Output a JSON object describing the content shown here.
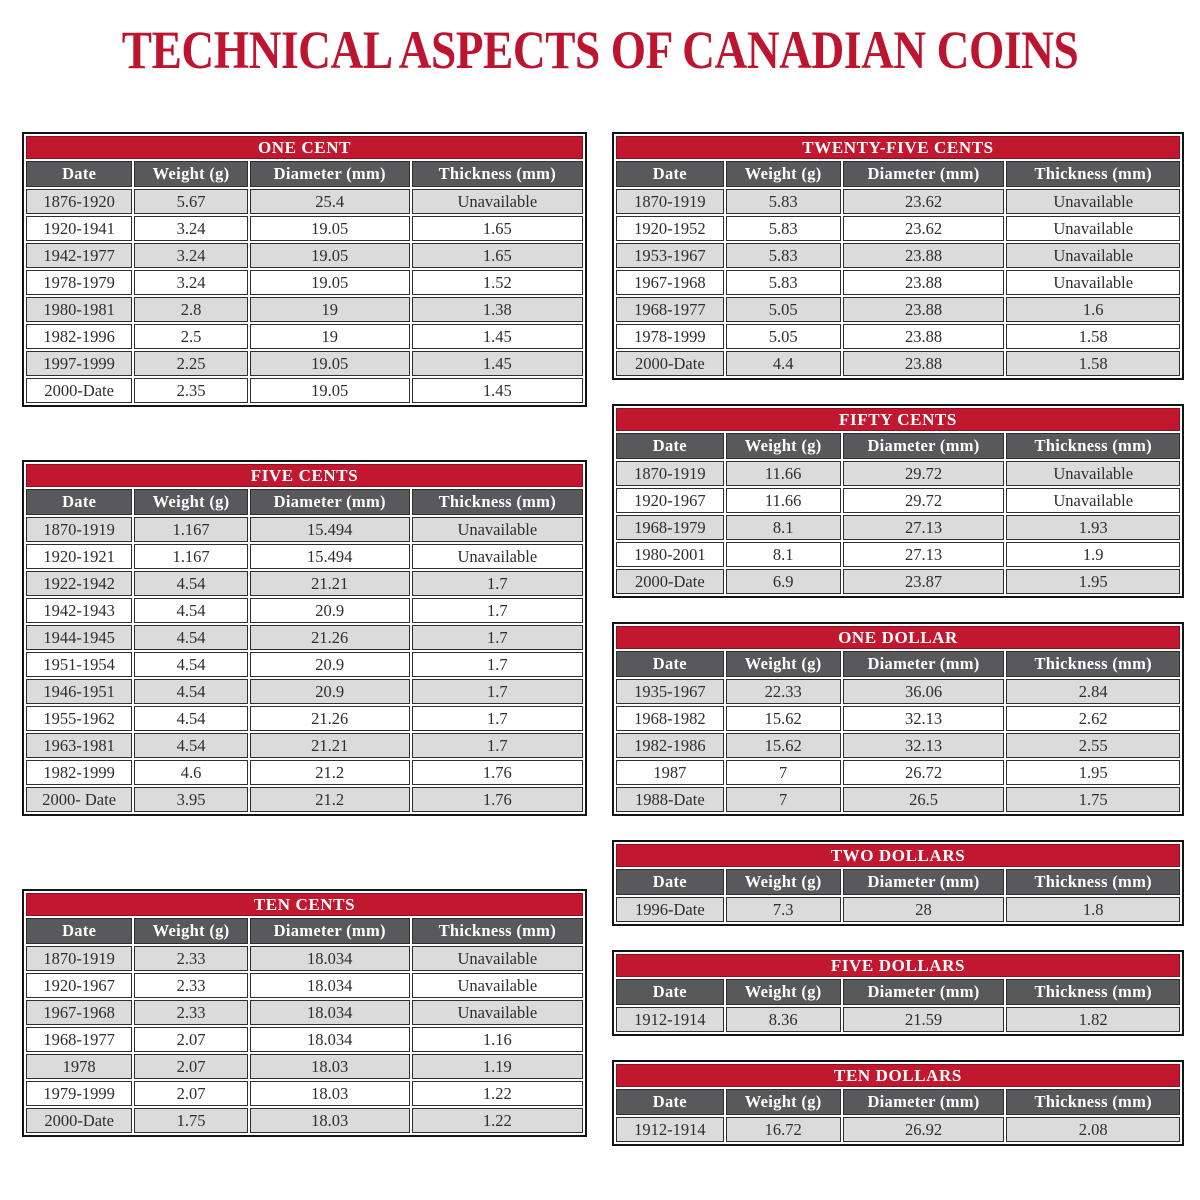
{
  "title": "TECHNICAL ASPECTS OF CANADIAN COINS",
  "colors": {
    "band_red": "#c2182f",
    "title_red": "#bd1430",
    "header_gray": "#59585a",
    "row_gray": "#dbdbdb",
    "row_white": "#ffffff",
    "text_dark": "#2e2d30"
  },
  "columns": [
    "Date",
    "Weight (g)",
    "Diameter (mm)",
    "Thickness (mm)"
  ],
  "tables": [
    {
      "name": "one-cent",
      "side": "left",
      "title": "ONE CENT",
      "rows": [
        [
          "1876-1920",
          "5.67",
          "25.4",
          "Unavailable"
        ],
        [
          "1920-1941",
          "3.24",
          "19.05",
          "1.65"
        ],
        [
          "1942-1977",
          "3.24",
          "19.05",
          "1.65"
        ],
        [
          "1978-1979",
          "3.24",
          "19.05",
          "1.52"
        ],
        [
          "1980-1981",
          "2.8",
          "19",
          "1.38"
        ],
        [
          "1982-1996",
          "2.5",
          "19",
          "1.45"
        ],
        [
          "1997-1999",
          "2.25",
          "19.05",
          "1.45"
        ],
        [
          "2000-Date",
          "2.35",
          "19.05",
          "1.45"
        ]
      ]
    },
    {
      "name": "five-cents",
      "side": "left",
      "title": "FIVE CENTS",
      "rows": [
        [
          "1870-1919",
          "1.167",
          "15.494",
          "Unavailable"
        ],
        [
          "1920-1921",
          "1.167",
          "15.494",
          "Unavailable"
        ],
        [
          "1922-1942",
          "4.54",
          "21.21",
          "1.7"
        ],
        [
          "1942-1943",
          "4.54",
          "20.9",
          "1.7"
        ],
        [
          "1944-1945",
          "4.54",
          "21.26",
          "1.7"
        ],
        [
          "1951-1954",
          "4.54",
          "20.9",
          "1.7"
        ],
        [
          "1946-1951",
          "4.54",
          "20.9",
          "1.7"
        ],
        [
          "1955-1962",
          "4.54",
          "21.26",
          "1.7"
        ],
        [
          "1963-1981",
          "4.54",
          "21.21",
          "1.7"
        ],
        [
          "1982-1999",
          "4.6",
          "21.2",
          "1.76"
        ],
        [
          "2000- Date",
          "3.95",
          "21.2",
          "1.76"
        ]
      ]
    },
    {
      "name": "ten-cents",
      "side": "left",
      "title": "TEN CENTS",
      "rows": [
        [
          "1870-1919",
          "2.33",
          "18.034",
          "Unavailable"
        ],
        [
          "1920-1967",
          "2.33",
          "18.034",
          "Unavailable"
        ],
        [
          "1967-1968",
          "2.33",
          "18.034",
          "Unavailable"
        ],
        [
          "1968-1977",
          "2.07",
          "18.034",
          "1.16"
        ],
        [
          "1978",
          "2.07",
          "18.03",
          "1.19"
        ],
        [
          "1979-1999",
          "2.07",
          "18.03",
          "1.22"
        ],
        [
          "2000-Date",
          "1.75",
          "18.03",
          "1.22"
        ]
      ]
    },
    {
      "name": "twenty-five-cents",
      "side": "right",
      "title": "TWENTY-FIVE CENTS",
      "rows": [
        [
          "1870-1919",
          "5.83",
          "23.62",
          "Unavailable"
        ],
        [
          "1920-1952",
          "5.83",
          "23.62",
          "Unavailable"
        ],
        [
          "1953-1967",
          "5.83",
          "23.88",
          "Unavailable"
        ],
        [
          "1967-1968",
          "5.83",
          "23.88",
          "Unavailable"
        ],
        [
          "1968-1977",
          "5.05",
          "23.88",
          "1.6"
        ],
        [
          "1978-1999",
          "5.05",
          "23.88",
          "1.58"
        ],
        [
          "2000-Date",
          "4.4",
          "23.88",
          "1.58"
        ]
      ]
    },
    {
      "name": "fifty-cents",
      "side": "right",
      "title": "FIFTY CENTS",
      "rows": [
        [
          "1870-1919",
          "11.66",
          "29.72",
          "Unavailable"
        ],
        [
          "1920-1967",
          "11.66",
          "29.72",
          "Unavailable"
        ],
        [
          "1968-1979",
          "8.1",
          "27.13",
          "1.93"
        ],
        [
          "1980-2001",
          "8.1",
          "27.13",
          "1.9"
        ],
        [
          "2000-Date",
          "6.9",
          "23.87",
          "1.95"
        ]
      ]
    },
    {
      "name": "one-dollar",
      "side": "right",
      "title": "ONE DOLLAR",
      "rows": [
        [
          "1935-1967",
          "22.33",
          "36.06",
          "2.84"
        ],
        [
          "1968-1982",
          "15.62",
          "32.13",
          "2.62"
        ],
        [
          "1982-1986",
          "15.62",
          "32.13",
          "2.55"
        ],
        [
          "1987",
          "7",
          "26.72",
          "1.95"
        ],
        [
          "1988-Date",
          "7",
          "26.5",
          "1.75"
        ]
      ]
    },
    {
      "name": "two-dollars",
      "side": "right",
      "title": "TWO DOLLARS",
      "rows": [
        [
          "1996-Date",
          "7.3",
          "28",
          "1.8"
        ]
      ]
    },
    {
      "name": "five-dollars",
      "side": "right",
      "title": "FIVE DOLLARS",
      "rows": [
        [
          "1912-1914",
          "8.36",
          "21.59",
          "1.82"
        ]
      ]
    },
    {
      "name": "ten-dollars",
      "side": "right",
      "title": "TEN DOLLARS",
      "rows": [
        [
          "1912-1914",
          "16.72",
          "26.92",
          "2.08"
        ]
      ]
    }
  ]
}
